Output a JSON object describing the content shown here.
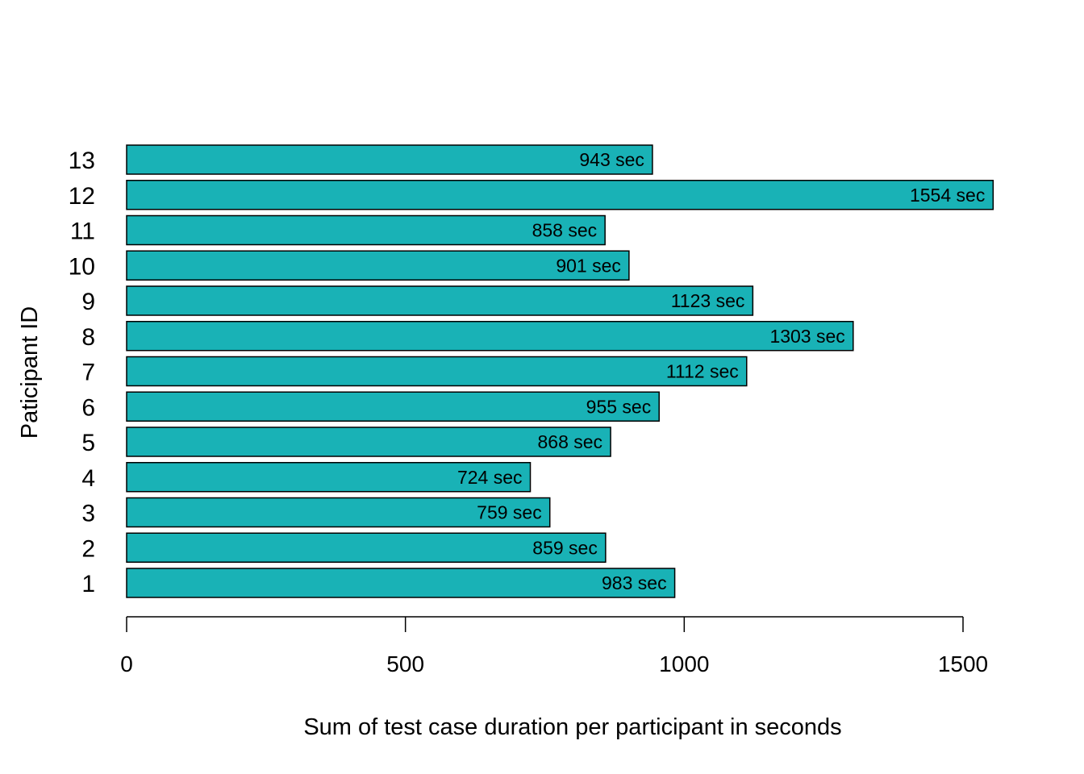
{
  "chart_data": {
    "type": "bar",
    "orientation": "horizontal",
    "categories": [
      "1",
      "2",
      "3",
      "4",
      "5",
      "6",
      "7",
      "8",
      "9",
      "10",
      "11",
      "12",
      "13"
    ],
    "values": [
      983,
      859,
      759,
      724,
      868,
      955,
      1112,
      1303,
      1123,
      901,
      858,
      1554,
      943
    ],
    "data_labels": [
      "983 sec",
      "859 sec",
      "759 sec",
      "724 sec",
      "868 sec",
      "955 sec",
      "1112 sec",
      "1303 sec",
      "1123 sec",
      "901 sec",
      "858 sec",
      "1554 sec",
      "943 sec"
    ],
    "xlabel": "Sum of test case duration per participant in seconds",
    "ylabel": "Paticipant ID",
    "xlim": [
      0,
      1500
    ],
    "x_ticks": [
      0,
      500,
      1000,
      1500
    ],
    "x_tick_labels": [
      "0",
      "500",
      "1000",
      "1500"
    ],
    "grid": false,
    "legend": "none",
    "colors": {
      "bar_fill": "#19B2B6",
      "bar_border": "#000000"
    }
  }
}
